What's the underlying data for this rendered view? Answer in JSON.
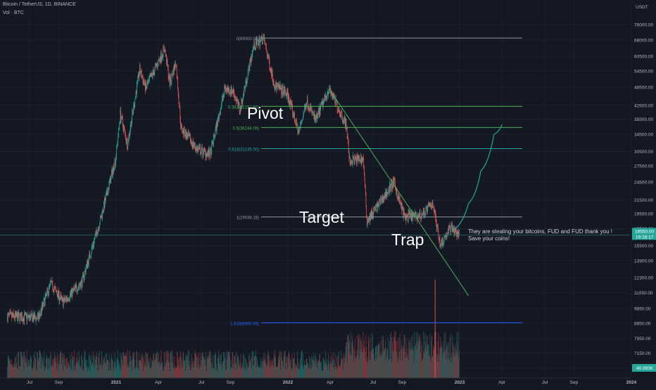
{
  "header": {
    "symbol_line": "Bitcoin / TetherUS, 1D, BINANCE",
    "volume_line": "Vol · BTC"
  },
  "colors": {
    "background": "#141823",
    "up": "#26a69a",
    "down": "#ef5350",
    "fib_0": "#9598a1",
    "fib_0382": "#4caf50",
    "fib_05": "#4caf50",
    "fib_0618": "#26a69a",
    "fib_1": "#9598a1",
    "fib_1618": "#2962ff",
    "projection": "#26a69a",
    "trendline": "#4caf50",
    "price_tag": "#26a69a",
    "axis_text": "#b2b5be"
  },
  "annotations": {
    "pivot": "Pivot",
    "target": "Target",
    "trap": "Trap",
    "note_line1": "They are stealing your bitcoins, FUD and FUD thank you !",
    "note_line2": "Save your coins!"
  },
  "chart_data": {
    "type": "candlestick",
    "title": "Bitcoin / TetherUS, 1D, BINANCE",
    "y_axis": {
      "unit": "USDT",
      "scale": "log",
      "ticks": [
        76000,
        68000,
        60500,
        54500,
        48500,
        42500,
        38500,
        34500,
        30500,
        27500,
        24500,
        21500,
        19500,
        17500,
        15500,
        13900,
        12300,
        11050,
        9850,
        8850,
        7950,
        7150,
        6400
      ],
      "tick_labels": [
        "76000.00",
        "68000.00",
        "60500.00",
        "54500.00",
        "48500.00",
        "42500.00",
        "38500.00",
        "34500.00",
        "30500.00",
        "27500.00",
        "24500.00",
        "21500.00",
        "19500.00",
        "17500.00",
        "15500.00",
        "13900.00",
        "12300.00",
        "11050.00",
        "9850.00",
        "8850.00",
        "7950.00",
        "7150.00",
        "6400.00"
      ]
    },
    "x_axis": {
      "labels": [
        "Jul",
        "Sep",
        "2021",
        "Apr",
        "Jul",
        "Sep",
        "2022",
        "Apr",
        "Jul",
        "Sep",
        "2023",
        "Apr",
        "Jul",
        "Sep",
        "2024"
      ],
      "dates": [
        "2020-07-01",
        "2020-09-01",
        "2021-01-01",
        "2021-04-01",
        "2021-07-01",
        "2021-09-01",
        "2022-01-01",
        "2022-04-01",
        "2022-07-01",
        "2022-09-01",
        "2023-01-01",
        "2023-04-01",
        "2023-07-01",
        "2023-09-01",
        "2024-01-01"
      ]
    },
    "price_path": [
      {
        "date": "2020-05-15",
        "price": 9300
      },
      {
        "date": "2020-07-20",
        "price": 9200
      },
      {
        "date": "2020-08-15",
        "price": 11800
      },
      {
        "date": "2020-09-10",
        "price": 10300
      },
      {
        "date": "2020-10-20",
        "price": 11900
      },
      {
        "date": "2020-11-30",
        "price": 19000
      },
      {
        "date": "2020-12-31",
        "price": 29000
      },
      {
        "date": "2021-01-10",
        "price": 40000
      },
      {
        "date": "2021-01-25",
        "price": 32000
      },
      {
        "date": "2021-02-20",
        "price": 55000
      },
      {
        "date": "2021-03-05",
        "price": 48000
      },
      {
        "date": "2021-04-14",
        "price": 64000
      },
      {
        "date": "2021-04-25",
        "price": 50000
      },
      {
        "date": "2021-05-08",
        "price": 58000
      },
      {
        "date": "2021-05-19",
        "price": 36000
      },
      {
        "date": "2021-06-22",
        "price": 31000
      },
      {
        "date": "2021-07-20",
        "price": 29800
      },
      {
        "date": "2021-08-20",
        "price": 48000
      },
      {
        "date": "2021-09-07",
        "price": 47000
      },
      {
        "date": "2021-09-21",
        "price": 41000
      },
      {
        "date": "2021-10-20",
        "price": 65000
      },
      {
        "date": "2021-11-10",
        "price": 69000
      },
      {
        "date": "2021-12-04",
        "price": 49000
      },
      {
        "date": "2021-12-31",
        "price": 46000
      },
      {
        "date": "2022-01-24",
        "price": 35000
      },
      {
        "date": "2022-02-10",
        "price": 44000
      },
      {
        "date": "2022-03-01",
        "price": 38000
      },
      {
        "date": "2022-03-29",
        "price": 48000
      },
      {
        "date": "2022-05-05",
        "price": 37000
      },
      {
        "date": "2022-05-12",
        "price": 28500
      },
      {
        "date": "2022-06-10",
        "price": 29000
      },
      {
        "date": "2022-06-18",
        "price": 18500
      },
      {
        "date": "2022-07-10",
        "price": 20500
      },
      {
        "date": "2022-08-14",
        "price": 24400
      },
      {
        "date": "2022-09-06",
        "price": 19000
      },
      {
        "date": "2022-10-10",
        "price": 19200
      },
      {
        "date": "2022-11-05",
        "price": 21000
      },
      {
        "date": "2022-11-21",
        "price": 15600
      },
      {
        "date": "2022-12-14",
        "price": 17800
      },
      {
        "date": "2022-12-31",
        "price": 16550
      }
    ],
    "current_price_label": "16550.00",
    "countdown_label": "19:28:17",
    "volume_label": "40.993K",
    "fibonacci": [
      {
        "label": "0(69000.00)",
        "ratio": 0,
        "price": 69000
      },
      {
        "label": "0.382(42191.56)",
        "ratio": 0.382,
        "price": 42191.56
      },
      {
        "label": "0.5(36244.09)",
        "ratio": 0.5,
        "price": 36244.09
      },
      {
        "label": "0.618(31135.00)",
        "ratio": 0.618,
        "price": 31135.0
      },
      {
        "label": "1(19038.18)",
        "ratio": 1,
        "price": 19038.18
      },
      {
        "label": "1.618(8890.63)",
        "ratio": 1.618,
        "price": 8890.63
      }
    ],
    "trendline": {
      "from": {
        "date": "2022-03-29",
        "price": 48000
      },
      "to": {
        "date": "2023-01-20",
        "price": 10800
      }
    },
    "projection_path": [
      {
        "date": "2022-12-20",
        "price": 17400
      },
      {
        "date": "2023-01-20",
        "price": 21000
      },
      {
        "date": "2023-02-15",
        "price": 26500
      },
      {
        "date": "2023-03-15",
        "price": 34500
      },
      {
        "date": "2023-04-01",
        "price": 37000
      }
    ],
    "horizontal_line": {
      "price": 16700
    }
  }
}
